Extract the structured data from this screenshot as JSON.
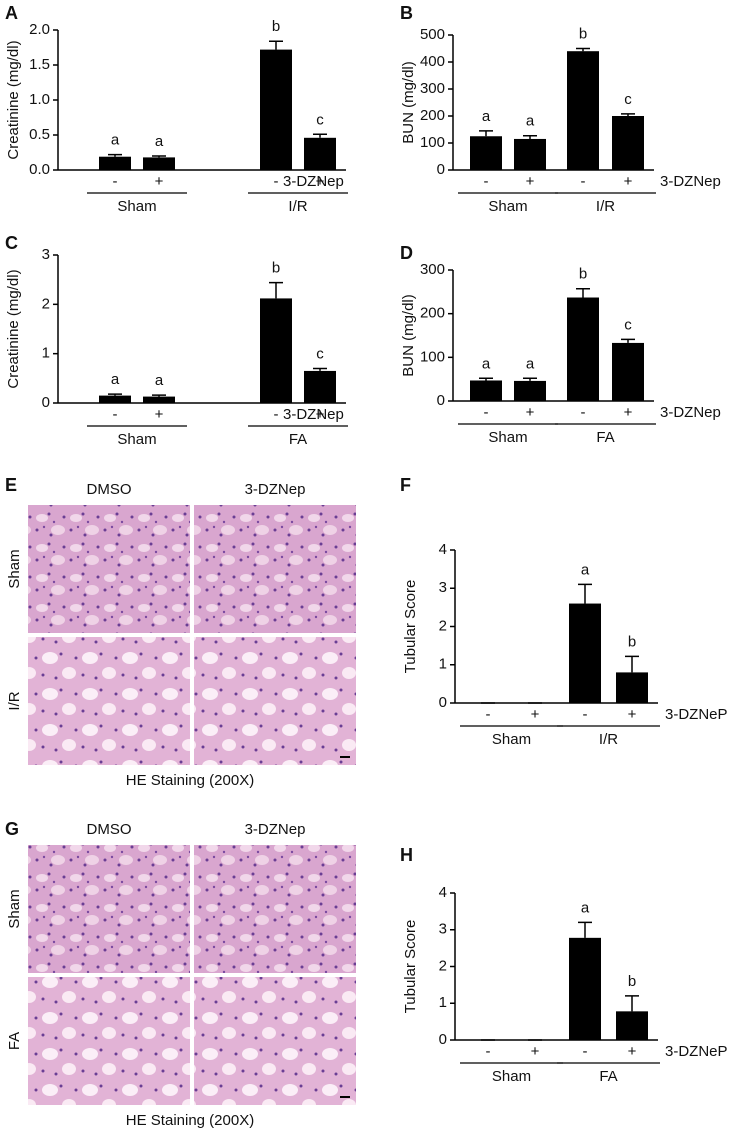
{
  "chart_data": [
    {
      "type": "bar",
      "title": "A",
      "y_label": "Creatinine (mg/dl)",
      "categories": [
        "-",
        "+",
        "-",
        "+"
      ],
      "groups": [
        "Sham",
        "I/R"
      ],
      "treatment_label": "3-DZNep",
      "values": [
        0.19,
        0.18,
        1.72,
        0.46
      ],
      "errors": [
        0.03,
        0.02,
        0.12,
        0.05
      ],
      "significance": [
        "a",
        "a",
        "b",
        "c"
      ],
      "color": "#000000",
      "ylim": [
        0,
        2
      ],
      "yticks": [
        {
          "value": 0,
          "label": "0.0"
        },
        0.5,
        {
          "value": 1,
          "label": "1.0"
        },
        1.5,
        {
          "value": 2,
          "label": "2.0"
        }
      ]
    },
    {
      "type": "bar",
      "title": "B",
      "y_label": "BUN (mg/dl)",
      "categories": [
        "-",
        "+",
        "-",
        "+"
      ],
      "groups": [
        "Sham",
        "I/R"
      ],
      "treatment_label": "3-DZNep",
      "values": [
        125,
        115,
        440,
        200
      ],
      "errors": [
        20,
        12,
        10,
        8
      ],
      "significance": [
        "a",
        "a",
        "b",
        "c"
      ],
      "color": "#000000",
      "ylim": [
        0,
        500
      ],
      "yticks": [
        0,
        100,
        200,
        300,
        400,
        500
      ]
    },
    {
      "type": "bar",
      "title": "C",
      "y_label": "Creatinine (mg/dl)",
      "categories": [
        "-",
        "+",
        "-",
        "+"
      ],
      "groups": [
        "Sham",
        "FA"
      ],
      "treatment_label": "3-DZNep",
      "values": [
        0.15,
        0.13,
        2.12,
        0.65
      ],
      "errors": [
        0.03,
        0.03,
        0.32,
        0.05
      ],
      "significance": [
        "a",
        "a",
        "b",
        "c"
      ],
      "color": "#000000",
      "ylim": [
        0,
        3
      ],
      "yticks": [
        0,
        1,
        2,
        3
      ]
    },
    {
      "type": "bar",
      "title": "D",
      "y_label": "BUN (mg/dl)",
      "categories": [
        "-",
        "+",
        "-",
        "+"
      ],
      "groups": [
        "Sham",
        "FA"
      ],
      "treatment_label": "3-DZNep",
      "values": [
        47,
        46,
        237,
        133
      ],
      "errors": [
        5,
        6,
        20,
        8
      ],
      "significance": [
        "a",
        "a",
        "b",
        "c"
      ],
      "color": "#000000",
      "ylim": [
        0,
        300
      ],
      "yticks": [
        0,
        100,
        200,
        300
      ]
    },
    {
      "type": "bar",
      "title": "F",
      "y_label": "Tubular Score",
      "categories": [
        "-",
        "+",
        "-",
        "+"
      ],
      "groups": [
        "Sham",
        "I/R"
      ],
      "treatment_label": "3-DZNeP",
      "values": [
        0,
        0,
        2.6,
        0.8
      ],
      "errors": [
        0,
        0,
        0.5,
        0.42
      ],
      "significance": [
        null,
        null,
        "a",
        "b"
      ],
      "color": "#000000",
      "ylim": [
        0,
        4
      ],
      "yticks": [
        0,
        1,
        2,
        3,
        4
      ]
    },
    {
      "type": "bar",
      "title": "H",
      "y_label": "Tubular Score",
      "categories": [
        "-",
        "+",
        "-",
        "+"
      ],
      "groups": [
        "Sham",
        "FA"
      ],
      "treatment_label": "3-DZNeP",
      "values": [
        0,
        0,
        2.78,
        0.78
      ],
      "errors": [
        0,
        0,
        0.42,
        0.42
      ],
      "significance": [
        null,
        null,
        "a",
        "b"
      ],
      "color": "#000000",
      "ylim": [
        0,
        4
      ],
      "yticks": [
        0,
        1,
        2,
        3,
        4
      ]
    }
  ],
  "images": [
    {
      "panel": "E",
      "columns": [
        "DMSO",
        "3-DZNep"
      ],
      "rows": [
        "Sham",
        "I/R"
      ],
      "caption": "HE Staining (200X)"
    },
    {
      "panel": "G",
      "columns": [
        "DMSO",
        "3-DZNep"
      ],
      "rows": [
        "Sham",
        "FA"
      ],
      "caption": "HE Staining (200X)"
    }
  ]
}
